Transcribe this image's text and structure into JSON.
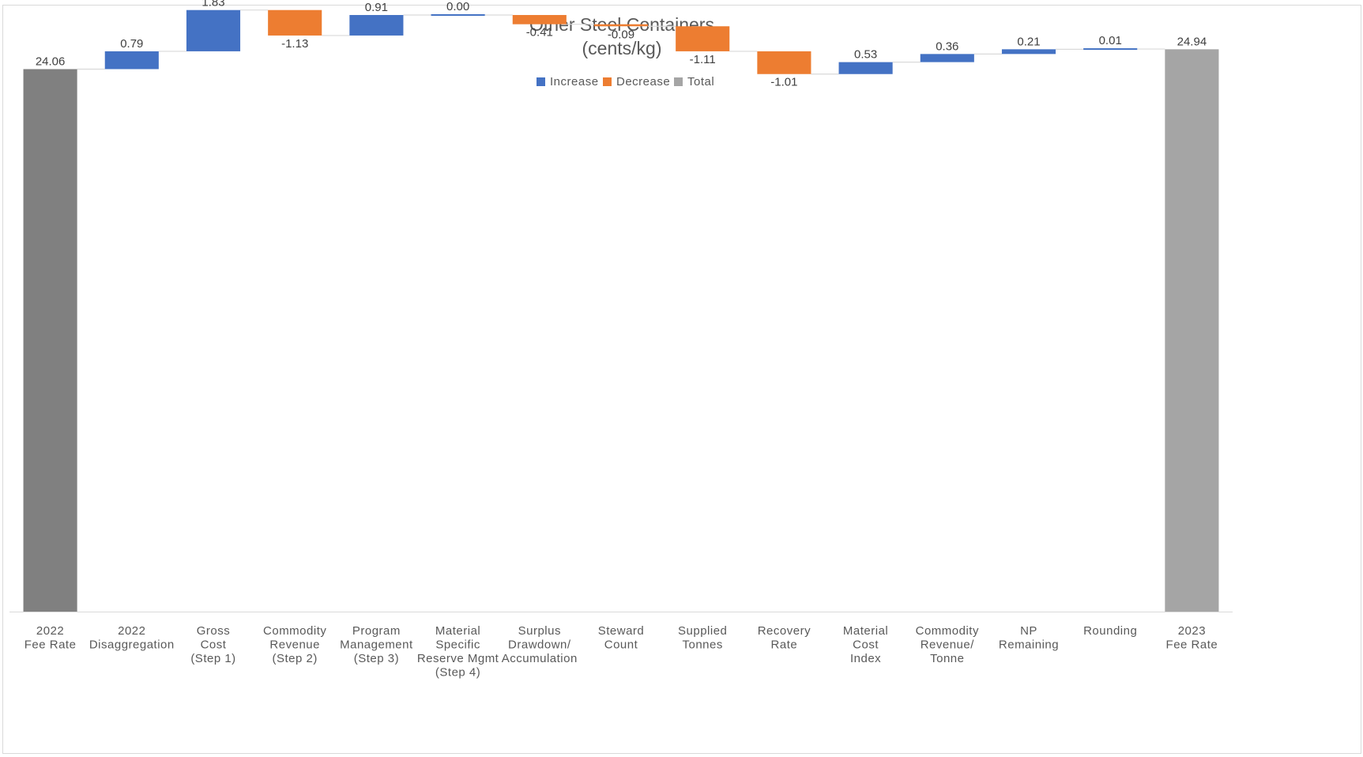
{
  "chart_data": {
    "type": "waterfall",
    "title_lines": [
      "Other Steel Containers",
      "(cents/kg)"
    ],
    "legend": {
      "placement": "top-center",
      "entries": [
        {
          "name": "Increase",
          "color": "#4472C4"
        },
        {
          "name": "Decrease",
          "color": "#ED7D31"
        },
        {
          "name": "Total",
          "color": "#A5A5A5"
        }
      ]
    },
    "colors": {
      "increase": "#4472C4",
      "decrease": "#ED7D31",
      "total_start": "#808080",
      "total_end": "#A5A5A5",
      "connector": "#D9D9D9",
      "axis": "#D9D9D9"
    },
    "ylim": [
      0,
      26.88
    ],
    "grid": false,
    "categories": [
      {
        "lines": [
          "2022",
          "Fee Rate"
        ],
        "value": 24.06,
        "label": "24.06",
        "kind": "total"
      },
      {
        "lines": [
          "2022",
          "Disaggregation"
        ],
        "value": 0.79,
        "label": "0.79",
        "kind": "increase"
      },
      {
        "lines": [
          "Gross",
          "Cost",
          "(Step 1)"
        ],
        "value": 1.83,
        "label": "1.83",
        "kind": "increase"
      },
      {
        "lines": [
          "Commodity",
          "Revenue",
          "(Step 2)"
        ],
        "value": -1.13,
        "label": "-1.13",
        "kind": "decrease"
      },
      {
        "lines": [
          "Program",
          "Management",
          "(Step 3)"
        ],
        "value": 0.91,
        "label": "0.91",
        "kind": "increase"
      },
      {
        "lines": [
          "Material",
          "Specific",
          "Reserve Mgmt",
          "(Step 4)"
        ],
        "value": 0.0,
        "label": "0.00",
        "kind": "increase"
      },
      {
        "lines": [
          "Surplus",
          "Drawdown/",
          "Accumulation"
        ],
        "value": -0.41,
        "label": "-0.41",
        "kind": "decrease"
      },
      {
        "lines": [
          "Steward",
          "Count"
        ],
        "value": -0.09,
        "label": "-0.09",
        "kind": "decrease"
      },
      {
        "lines": [
          "Supplied",
          "Tonnes"
        ],
        "value": -1.11,
        "label": "-1.11",
        "kind": "decrease"
      },
      {
        "lines": [
          "Recovery",
          "Rate"
        ],
        "value": -1.01,
        "label": "-1.01",
        "kind": "decrease"
      },
      {
        "lines": [
          "Material",
          "Cost",
          "Index"
        ],
        "value": 0.53,
        "label": "0.53",
        "kind": "increase"
      },
      {
        "lines": [
          "Commodity",
          "Revenue/",
          "Tonne"
        ],
        "value": 0.36,
        "label": "0.36",
        "kind": "increase"
      },
      {
        "lines": [
          "NP",
          "Remaining"
        ],
        "value": 0.21,
        "label": "0.21",
        "kind": "increase"
      },
      {
        "lines": [
          "Rounding"
        ],
        "value": 0.01,
        "label": "0.01",
        "kind": "increase"
      },
      {
        "lines": [
          "2023",
          "Fee Rate"
        ],
        "value": 24.94,
        "label": "24.94",
        "kind": "total"
      }
    ]
  }
}
